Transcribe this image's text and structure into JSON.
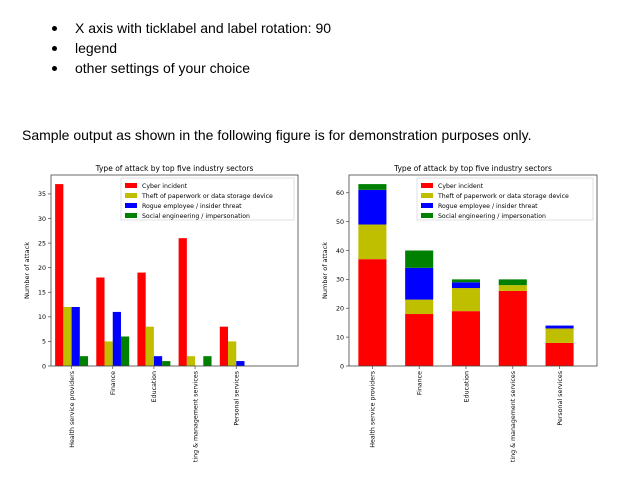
{
  "bullets": [
    "X axis with ticklabel and label rotation: 90",
    "legend",
    "other settings of your choice"
  ],
  "paragraph": "Sample output as shown in the following figure is for demonstration purposes only.",
  "colors": {
    "Cyber incident": "#ff0000",
    "Theft of paperwork or data storage device": "#bfbf00",
    "Rogue employee / insider threat": "#0000ff",
    "Social engineering / impersonation": "#008000"
  },
  "chart_data": [
    {
      "type": "bar",
      "mode": "grouped",
      "title": "Type of attack by top five industry sectors",
      "ylabel": "Number of attack",
      "xlabel": "",
      "categories": [
        "Health service providers",
        "Finance",
        "Education",
        "ting & management services",
        "Personal services"
      ],
      "yticks": [
        0,
        5,
        10,
        15,
        20,
        25,
        30,
        35
      ],
      "ylim": [
        0,
        38.85
      ],
      "legend": "top-right",
      "grid": false,
      "series": [
        {
          "name": "Cyber incident",
          "values": [
            37,
            18,
            19,
            26,
            8
          ]
        },
        {
          "name": "Theft of paperwork or data storage device",
          "values": [
            12,
            5,
            8,
            2,
            5
          ]
        },
        {
          "name": "Rogue employee / insider threat",
          "values": [
            12,
            11,
            2,
            0,
            1
          ]
        },
        {
          "name": "Social engineering / impersonation",
          "values": [
            2,
            6,
            1,
            2,
            0
          ]
        }
      ]
    },
    {
      "type": "bar",
      "mode": "stacked",
      "title": "Type of attack by top five industry sectors",
      "ylabel": "Number of attack",
      "xlabel": "",
      "categories": [
        "Health service providers",
        "Finance",
        "Education",
        "ting & management services",
        "Personal services"
      ],
      "yticks": [
        0,
        10,
        20,
        30,
        40,
        50,
        60
      ],
      "ylim": [
        0,
        66.15
      ],
      "legend": "top-right",
      "grid": false,
      "series": [
        {
          "name": "Cyber incident",
          "values": [
            37,
            18,
            19,
            26,
            8
          ]
        },
        {
          "name": "Theft of paperwork or data storage device",
          "values": [
            12,
            5,
            8,
            2,
            5
          ]
        },
        {
          "name": "Rogue employee / insider threat",
          "values": [
            12,
            11,
            2,
            0,
            1
          ]
        },
        {
          "name": "Social engineering / impersonation",
          "values": [
            2,
            6,
            1,
            2,
            0
          ]
        }
      ]
    }
  ]
}
